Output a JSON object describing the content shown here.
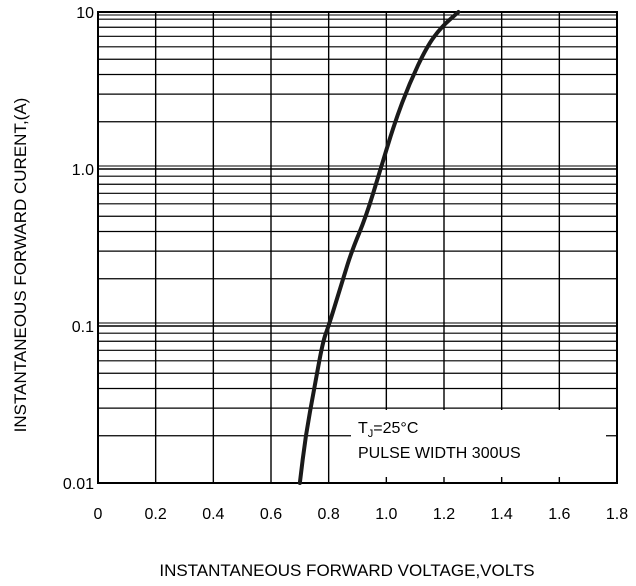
{
  "chart_data": {
    "type": "line",
    "xlabel": "INSTANTANEOUS FORWARD VOLTAGE,VOLTS",
    "ylabel": "INSTANTANEOUS FORWARD  CURENT,(A)",
    "x_scale": "linear",
    "y_scale": "log",
    "xlim": [
      0,
      1.8
    ],
    "ylim": [
      0.01,
      10
    ],
    "x_ticks": [
      {
        "value": 0,
        "label": "0"
      },
      {
        "value": 0.2,
        "label": "0.2"
      },
      {
        "value": 0.4,
        "label": "0.4"
      },
      {
        "value": 0.6,
        "label": "0.6"
      },
      {
        "value": 0.8,
        "label": "0.8"
      },
      {
        "value": 1.0,
        "label": "1.0"
      },
      {
        "value": 1.2,
        "label": "1.2"
      },
      {
        "value": 1.4,
        "label": "1.4"
      },
      {
        "value": 1.6,
        "label": "1.6"
      },
      {
        "value": 1.8,
        "label": "1.8"
      }
    ],
    "y_ticks": [
      {
        "value": 0.01,
        "label": "0.01"
      },
      {
        "value": 0.1,
        "label": "0.1"
      },
      {
        "value": 1,
        "label": "1.0"
      },
      {
        "value": 10,
        "label": "10"
      }
    ],
    "grid": true,
    "series": [
      {
        "color": "#1a1a1a",
        "points": [
          [
            0.7,
            0.01
          ],
          [
            0.72,
            0.02
          ],
          [
            0.75,
            0.04
          ],
          [
            0.78,
            0.08
          ],
          [
            0.8,
            0.1
          ],
          [
            0.85,
            0.2
          ],
          [
            0.88,
            0.3
          ],
          [
            0.93,
            0.5
          ],
          [
            0.98,
            1.0
          ],
          [
            1.03,
            2.0
          ],
          [
            1.08,
            3.5
          ],
          [
            1.14,
            6.0
          ],
          [
            1.19,
            8.0
          ],
          [
            1.25,
            10.0
          ]
        ]
      }
    ],
    "annotation": {
      "line1_main": "T",
      "line1_sub": "J",
      "line1_rest": "=25°C",
      "line2": "PULSE WIDTH 300US"
    }
  }
}
